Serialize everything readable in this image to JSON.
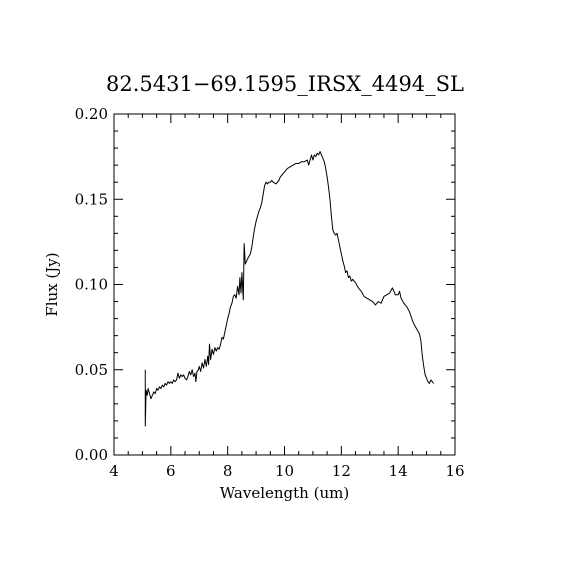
{
  "chart_data": {
    "type": "line",
    "title": "82.5431−69.1595_IRSX_4494_SL",
    "xlabel": "Wavelength (um)",
    "ylabel": "Flux (Jy)",
    "xlim": [
      4,
      16
    ],
    "ylim": [
      0,
      0.2
    ],
    "x_ticks": [
      "4",
      "6",
      "8",
      "10",
      "12",
      "14",
      "16"
    ],
    "y_ticks": [
      "0.00",
      "0.05",
      "0.10",
      "0.15",
      "0.20"
    ],
    "grid": false,
    "legend": "none",
    "series": [
      {
        "points": [
          [
            5.1,
            0.05
          ],
          [
            5.1,
            0.017
          ],
          [
            5.13,
            0.038
          ],
          [
            5.17,
            0.035
          ],
          [
            5.2,
            0.039
          ],
          [
            5.25,
            0.036
          ],
          [
            5.3,
            0.033
          ],
          [
            5.35,
            0.035
          ],
          [
            5.4,
            0.037
          ],
          [
            5.45,
            0.036
          ],
          [
            5.5,
            0.039
          ],
          [
            5.55,
            0.038
          ],
          [
            5.6,
            0.04
          ],
          [
            5.65,
            0.039
          ],
          [
            5.7,
            0.041
          ],
          [
            5.75,
            0.04
          ],
          [
            5.8,
            0.042
          ],
          [
            5.85,
            0.041
          ],
          [
            5.9,
            0.043
          ],
          [
            5.95,
            0.042
          ],
          [
            6.0,
            0.043
          ],
          [
            6.05,
            0.042
          ],
          [
            6.1,
            0.044
          ],
          [
            6.15,
            0.043
          ],
          [
            6.2,
            0.044
          ],
          [
            6.25,
            0.048
          ],
          [
            6.3,
            0.045
          ],
          [
            6.35,
            0.047
          ],
          [
            6.4,
            0.046
          ],
          [
            6.45,
            0.047
          ],
          [
            6.5,
            0.045
          ],
          [
            6.55,
            0.044
          ],
          [
            6.6,
            0.046
          ],
          [
            6.65,
            0.049
          ],
          [
            6.7,
            0.047
          ],
          [
            6.75,
            0.05
          ],
          [
            6.8,
            0.046
          ],
          [
            6.85,
            0.048
          ],
          [
            6.88,
            0.043
          ],
          [
            6.92,
            0.049
          ],
          [
            6.97,
            0.05
          ],
          [
            7.0,
            0.052
          ],
          [
            7.05,
            0.049
          ],
          [
            7.1,
            0.054
          ],
          [
            7.15,
            0.051
          ],
          [
            7.2,
            0.056
          ],
          [
            7.25,
            0.052
          ],
          [
            7.3,
            0.058
          ],
          [
            7.33,
            0.053
          ],
          [
            7.36,
            0.065
          ],
          [
            7.4,
            0.056
          ],
          [
            7.45,
            0.062
          ],
          [
            7.5,
            0.059
          ],
          [
            7.55,
            0.063
          ],
          [
            7.6,
            0.061
          ],
          [
            7.65,
            0.063
          ],
          [
            7.7,
            0.062
          ],
          [
            7.75,
            0.065
          ],
          [
            7.8,
            0.069
          ],
          [
            7.85,
            0.068
          ],
          [
            7.9,
            0.072
          ],
          [
            7.95,
            0.076
          ],
          [
            8.0,
            0.08
          ],
          [
            8.05,
            0.083
          ],
          [
            8.1,
            0.087
          ],
          [
            8.15,
            0.089
          ],
          [
            8.2,
            0.093
          ],
          [
            8.25,
            0.094
          ],
          [
            8.3,
            0.092
          ],
          [
            8.35,
            0.099
          ],
          [
            8.4,
            0.094
          ],
          [
            8.43,
            0.104
          ],
          [
            8.47,
            0.095
          ],
          [
            8.5,
            0.107
          ],
          [
            8.55,
            0.091
          ],
          [
            8.58,
            0.124
          ],
          [
            8.62,
            0.112
          ],
          [
            8.7,
            0.115
          ],
          [
            8.8,
            0.118
          ],
          [
            8.85,
            0.122
          ],
          [
            8.9,
            0.128
          ],
          [
            8.95,
            0.133
          ],
          [
            9.0,
            0.137
          ],
          [
            9.05,
            0.14
          ],
          [
            9.1,
            0.143
          ],
          [
            9.15,
            0.145
          ],
          [
            9.2,
            0.148
          ],
          [
            9.25,
            0.153
          ],
          [
            9.3,
            0.158
          ],
          [
            9.35,
            0.16
          ],
          [
            9.4,
            0.159
          ],
          [
            9.45,
            0.16
          ],
          [
            9.5,
            0.16
          ],
          [
            9.55,
            0.161
          ],
          [
            9.6,
            0.16
          ],
          [
            9.7,
            0.159
          ],
          [
            9.8,
            0.161
          ],
          [
            9.85,
            0.163
          ],
          [
            9.9,
            0.164
          ],
          [
            10.0,
            0.166
          ],
          [
            10.1,
            0.168
          ],
          [
            10.2,
            0.169
          ],
          [
            10.3,
            0.17
          ],
          [
            10.4,
            0.171
          ],
          [
            10.5,
            0.171
          ],
          [
            10.6,
            0.172
          ],
          [
            10.7,
            0.172
          ],
          [
            10.8,
            0.173
          ],
          [
            10.85,
            0.17
          ],
          [
            10.9,
            0.173
          ],
          [
            10.95,
            0.176
          ],
          [
            11.0,
            0.173
          ],
          [
            11.05,
            0.176
          ],
          [
            11.1,
            0.175
          ],
          [
            11.15,
            0.177
          ],
          [
            11.2,
            0.176
          ],
          [
            11.25,
            0.178
          ],
          [
            11.3,
            0.176
          ],
          [
            11.4,
            0.172
          ],
          [
            11.45,
            0.168
          ],
          [
            11.5,
            0.163
          ],
          [
            11.55,
            0.157
          ],
          [
            11.6,
            0.15
          ],
          [
            11.65,
            0.14
          ],
          [
            11.7,
            0.132
          ],
          [
            11.75,
            0.13
          ],
          [
            11.8,
            0.129
          ],
          [
            11.85,
            0.13
          ],
          [
            11.9,
            0.126
          ],
          [
            11.95,
            0.122
          ],
          [
            12.0,
            0.118
          ],
          [
            12.05,
            0.114
          ],
          [
            12.1,
            0.111
          ],
          [
            12.15,
            0.107
          ],
          [
            12.2,
            0.108
          ],
          [
            12.25,
            0.104
          ],
          [
            12.3,
            0.105
          ],
          [
            12.35,
            0.102
          ],
          [
            12.4,
            0.103
          ],
          [
            12.5,
            0.101
          ],
          [
            12.6,
            0.098
          ],
          [
            12.7,
            0.096
          ],
          [
            12.8,
            0.093
          ],
          [
            12.9,
            0.092
          ],
          [
            13.0,
            0.091
          ],
          [
            13.1,
            0.09
          ],
          [
            13.2,
            0.088
          ],
          [
            13.3,
            0.09
          ],
          [
            13.4,
            0.089
          ],
          [
            13.5,
            0.093
          ],
          [
            13.6,
            0.094
          ],
          [
            13.7,
            0.095
          ],
          [
            13.8,
            0.098
          ],
          [
            13.85,
            0.096
          ],
          [
            13.9,
            0.094
          ],
          [
            14.0,
            0.094
          ],
          [
            14.05,
            0.096
          ],
          [
            14.1,
            0.092
          ],
          [
            14.2,
            0.089
          ],
          [
            14.3,
            0.087
          ],
          [
            14.4,
            0.084
          ],
          [
            14.5,
            0.079
          ],
          [
            14.55,
            0.077
          ],
          [
            14.65,
            0.074
          ],
          [
            14.75,
            0.071
          ],
          [
            14.8,
            0.067
          ],
          [
            14.85,
            0.058
          ],
          [
            14.9,
            0.052
          ],
          [
            14.95,
            0.047
          ],
          [
            15.0,
            0.045
          ],
          [
            15.05,
            0.043
          ],
          [
            15.1,
            0.042
          ],
          [
            15.15,
            0.044
          ],
          [
            15.2,
            0.043
          ],
          [
            15.25,
            0.042
          ]
        ]
      }
    ]
  }
}
